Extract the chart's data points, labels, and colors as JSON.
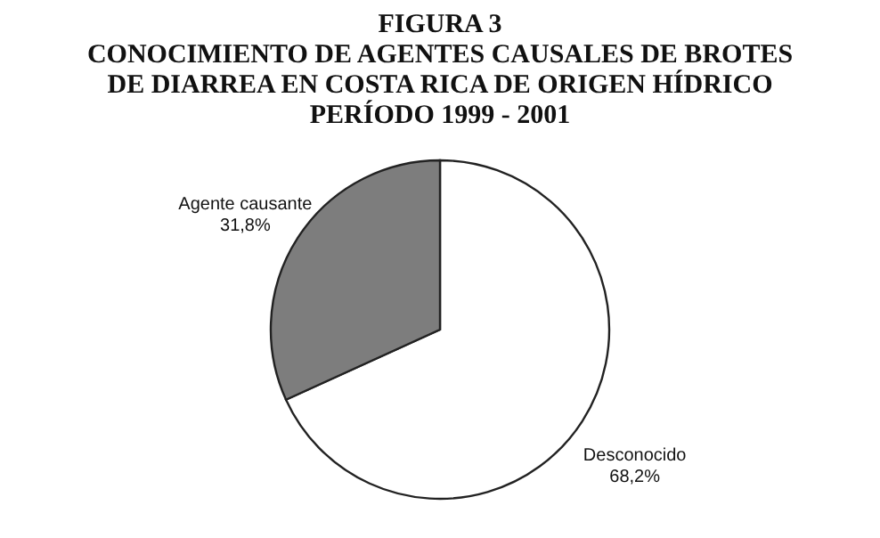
{
  "chart_data": {
    "type": "pie",
    "title": "FIGURA 3\nCONOCIMIENTO DE AGENTES CAUSALES DE BROTES\nDE DIARREA EN COSTA RICA DE ORIGEN HÍDRICO\nPERÍODO 1999 - 2001",
    "categories": [
      "Desconocido",
      "Agente causante"
    ],
    "values": [
      68.2,
      31.8
    ],
    "value_labels": [
      "68,2%",
      "31,8%"
    ],
    "colors": [
      "#ffffff",
      "#7d7d7d"
    ],
    "legend": false
  }
}
